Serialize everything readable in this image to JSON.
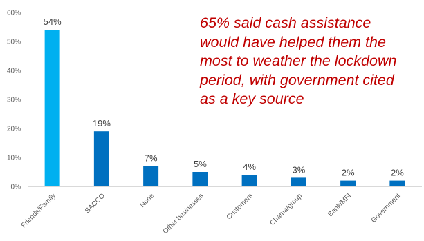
{
  "chart_data": {
    "type": "bar",
    "categories": [
      "Friends/Family",
      "SACCO",
      "None",
      "Other businesses",
      "Customers",
      "Chama/group",
      "Bank/MFI",
      "Government"
    ],
    "values": [
      54,
      19,
      7,
      5,
      4,
      3,
      2,
      2
    ],
    "data_labels": [
      "54%",
      "19%",
      "7%",
      "5%",
      "4%",
      "3%",
      "2%",
      "2%"
    ],
    "y_ticks": [
      "0%",
      "10%",
      "20%",
      "30%",
      "40%",
      "50%",
      "60%"
    ],
    "ylim": [
      0,
      60
    ],
    "grid": false,
    "legend": "none",
    "colors": [
      "#00b0f0",
      "#0070c0",
      "#0070c0",
      "#0070c0",
      "#0070c0",
      "#0070c0",
      "#0070c0",
      "#0070c0"
    ],
    "annotation": "65% said cash assistance\nwould have helped them the\nmost to weather the lockdown\nperiod, with government cited\nas a key source",
    "annotation_color": "#c00000"
  }
}
